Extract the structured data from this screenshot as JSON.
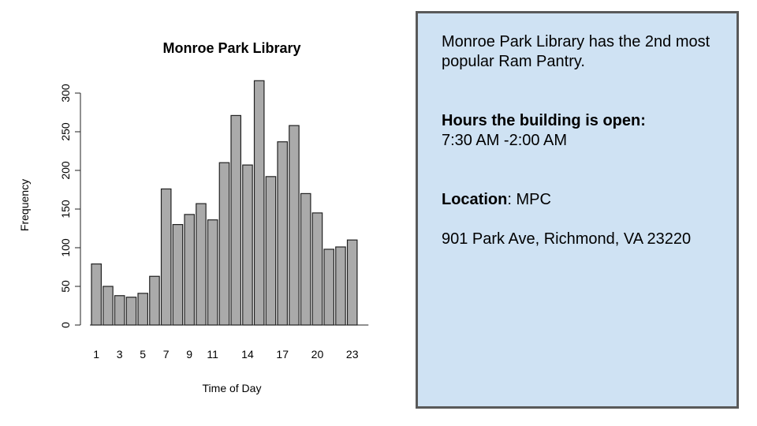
{
  "chart_data": {
    "type": "bar",
    "title": "Monroe Park Library",
    "xlabel": "Time of Day",
    "ylabel": "Frequency",
    "categories": [
      "1",
      "2",
      "3",
      "4",
      "5",
      "6",
      "7",
      "8",
      "9",
      "10",
      "11",
      "12",
      "13",
      "14",
      "15",
      "16",
      "17",
      "18",
      "19",
      "20",
      "21",
      "22",
      "23"
    ],
    "values": [
      79,
      50,
      38,
      36,
      41,
      63,
      176,
      130,
      143,
      157,
      136,
      210,
      271,
      207,
      316,
      192,
      237,
      258,
      170,
      145,
      98,
      101,
      110
    ],
    "x_tick_labels": [
      "1",
      "3",
      "5",
      "7",
      "9",
      "11",
      "14",
      "17",
      "20",
      "23"
    ],
    "y_ticks": [
      0,
      50,
      100,
      150,
      200,
      250,
      300
    ],
    "ylim": [
      0,
      300
    ],
    "grid": false,
    "colors": {
      "bar_fill": "#aaaaaa",
      "bar_stroke": "#222222"
    }
  },
  "info": {
    "intro": "Monroe Park Library has the 2nd most popular Ram Pantry.",
    "hours_heading": "Hours the building is open:",
    "hours_value": "7:30 AM -2:00 AM",
    "location_heading": "Location",
    "location_value": ": MPC",
    "address": "901 Park Ave, Richmond, VA 23220"
  },
  "colors": {
    "info_background": "#cfe2f3",
    "info_border": "#595959"
  }
}
